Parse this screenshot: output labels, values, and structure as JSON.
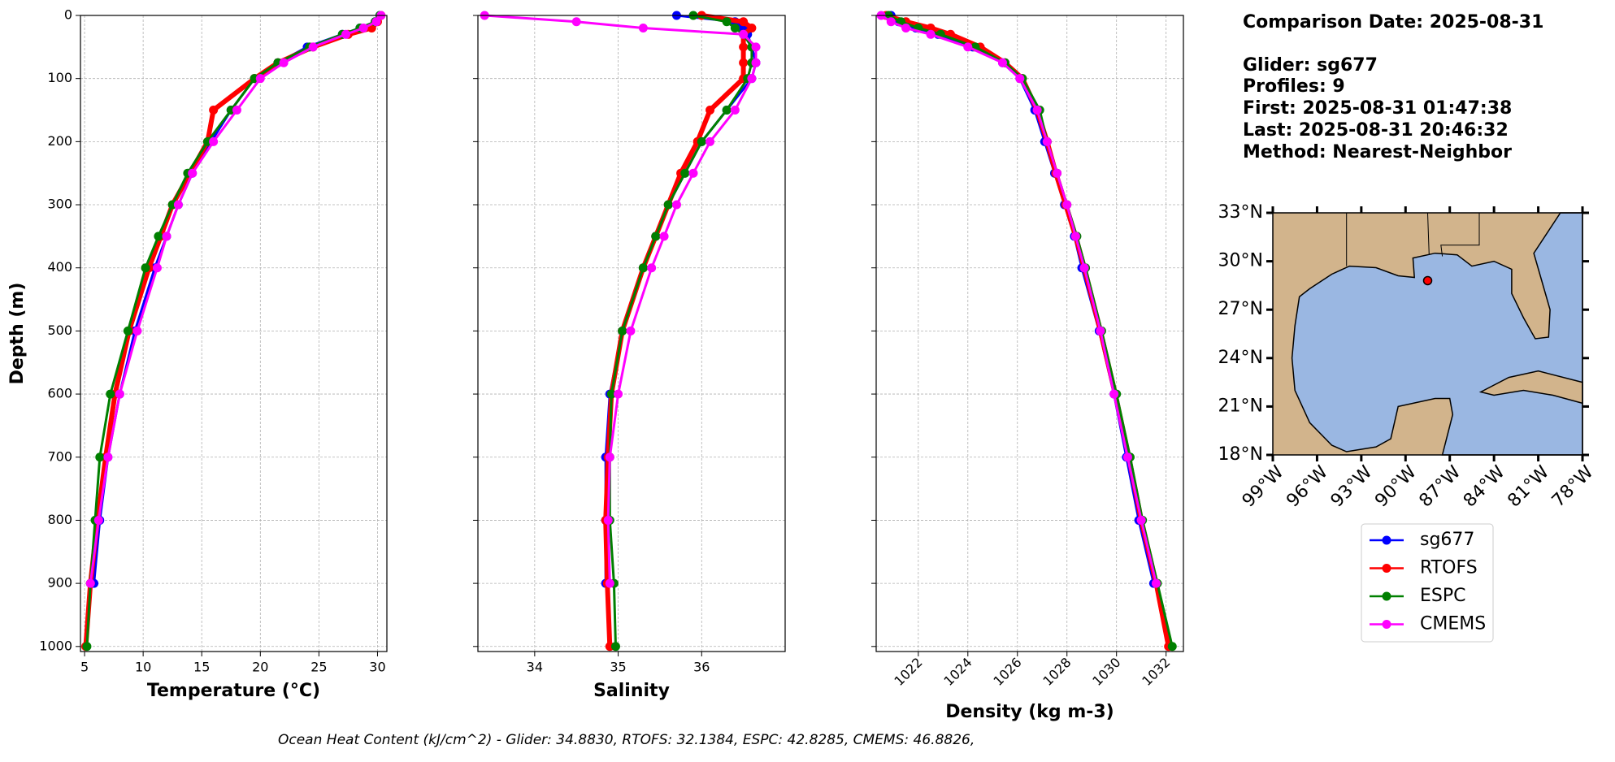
{
  "chart_data": [
    {
      "type": "line",
      "xlabel": "Temperature (°C)",
      "ylabel": "Depth (m)",
      "grid": true,
      "xlim": [
        4.65,
        30.8
      ],
      "ylim": [
        1008,
        0
      ],
      "xticks": [
        5,
        10,
        15,
        20,
        25,
        30
      ],
      "yticks": [
        0,
        100,
        200,
        300,
        400,
        500,
        600,
        700,
        800,
        900,
        1000
      ],
      "y": [
        0,
        10,
        20,
        30,
        50,
        75,
        100,
        150,
        200,
        250,
        300,
        350,
        400,
        500,
        600,
        700,
        800,
        900,
        1000
      ],
      "series": [
        {
          "name": "sg677",
          "color": "#0000ff",
          "values": [
            30.2,
            29.8,
            28.5,
            27,
            24,
            21.5,
            19.5,
            17.5,
            15.8,
            14.2,
            13,
            12,
            11,
            9.3,
            8,
            7,
            6.3,
            5.8,
            null
          ]
        },
        {
          "name": "RTOFS",
          "color": "#ff0000",
          "values": [
            30.3,
            30.0,
            29.5,
            27.5,
            24.5,
            21.5,
            19.5,
            16,
            15.5,
            14,
            12.5,
            11.5,
            10.5,
            8.8,
            7.6,
            6.8,
            6.1,
            5.5,
            5.1
          ]
        },
        {
          "name": "ESPC",
          "color": "#008000",
          "values": [
            30.2,
            29.8,
            28.5,
            27,
            24.2,
            21.5,
            19.5,
            17.5,
            15.5,
            13.8,
            12.5,
            11.3,
            10.2,
            8.7,
            7.2,
            6.3,
            5.9,
            5.5,
            5.2
          ]
        },
        {
          "name": "CMEMS",
          "color": "#ff00ff",
          "values": [
            30.3,
            29.9,
            28.8,
            27.3,
            24.5,
            22,
            20,
            18,
            16,
            14.2,
            13,
            12,
            11.2,
            9.5,
            8,
            7,
            6.2,
            5.5,
            null
          ]
        }
      ]
    },
    {
      "type": "line",
      "xlabel": "Salinity",
      "grid": true,
      "xlim": [
        33.32,
        37.0
      ],
      "ylim": [
        1008,
        0
      ],
      "xticks": [
        34,
        35,
        36
      ],
      "yticks": [
        0,
        100,
        200,
        300,
        400,
        500,
        600,
        700,
        800,
        900,
        1000
      ],
      "y": [
        0,
        10,
        20,
        30,
        50,
        75,
        100,
        150,
        200,
        250,
        300,
        350,
        400,
        500,
        600,
        700,
        800,
        900,
        1000
      ],
      "series": [
        {
          "name": "sg677",
          "color": "#0000ff",
          "values": [
            35.7,
            36.4,
            36.5,
            36.55,
            36.6,
            36.65,
            36.6,
            36.3,
            36.0,
            35.8,
            35.6,
            35.45,
            35.3,
            35.05,
            34.9,
            34.85,
            34.85,
            34.85,
            null
          ]
        },
        {
          "name": "RTOFS",
          "color": "#ff0000",
          "values": [
            36.0,
            36.5,
            36.6,
            36.5,
            36.5,
            36.5,
            36.5,
            36.1,
            35.95,
            35.75,
            35.6,
            35.45,
            35.3,
            35.05,
            34.92,
            34.88,
            34.85,
            34.87,
            34.9
          ]
        },
        {
          "name": "ESPC",
          "color": "#008000",
          "values": [
            35.9,
            36.3,
            36.4,
            36.5,
            36.6,
            36.6,
            36.55,
            36.3,
            36.0,
            35.8,
            35.6,
            35.45,
            35.3,
            35.05,
            34.92,
            34.9,
            34.9,
            34.95,
            34.97
          ]
        },
        {
          "name": "CMEMS",
          "color": "#ff00ff",
          "values": [
            33.4,
            34.5,
            35.3,
            36.5,
            36.65,
            36.65,
            36.6,
            36.4,
            36.1,
            35.9,
            35.7,
            35.55,
            35.4,
            35.15,
            35.0,
            34.9,
            34.88,
            34.9,
            null
          ]
        }
      ]
    },
    {
      "type": "line",
      "xlabel": "Density (kg m-3)",
      "grid": true,
      "xlim": [
        1020.3,
        1032.7
      ],
      "ylim": [
        1008,
        0
      ],
      "xticks": [
        1022,
        1024,
        1026,
        1028,
        1030,
        1032
      ],
      "yticks": [
        0,
        100,
        200,
        300,
        400,
        500,
        600,
        700,
        800,
        900,
        1000
      ],
      "y": [
        0,
        10,
        20,
        30,
        50,
        75,
        100,
        150,
        200,
        250,
        300,
        350,
        400,
        500,
        600,
        700,
        800,
        900,
        1000
      ],
      "series": [
        {
          "name": "sg677",
          "color": "#0000ff",
          "values": [
            1020.9,
            1021.2,
            1021.9,
            1022.8,
            1024.2,
            1025.4,
            1026.1,
            1026.7,
            1027.1,
            1027.5,
            1027.9,
            1028.3,
            1028.6,
            1029.3,
            1029.9,
            1030.4,
            1030.9,
            1031.5,
            null
          ]
        },
        {
          "name": "RTOFS",
          "color": "#ff0000",
          "values": [
            1020.7,
            1021.5,
            1022.5,
            1023.3,
            1024.5,
            1025.5,
            1026.2,
            1026.8,
            1027.2,
            1027.55,
            1027.95,
            1028.35,
            1028.7,
            1029.35,
            1029.95,
            1030.5,
            1031.0,
            1031.6,
            1032.1
          ]
        },
        {
          "name": "ESPC",
          "color": "#008000",
          "values": [
            1020.8,
            1021.3,
            1022.0,
            1022.9,
            1024.3,
            1025.5,
            1026.2,
            1026.9,
            1027.2,
            1027.6,
            1028.0,
            1028.4,
            1028.75,
            1029.4,
            1030.0,
            1030.55,
            1031.05,
            1031.65,
            1032.25
          ]
        },
        {
          "name": "CMEMS",
          "color": "#ff00ff",
          "values": [
            1020.5,
            1020.9,
            1021.5,
            1022.5,
            1024.0,
            1025.4,
            1026.1,
            1026.8,
            1027.2,
            1027.6,
            1028.0,
            1028.35,
            1028.7,
            1029.35,
            1029.9,
            1030.45,
            1031.0,
            1031.6,
            null
          ]
        }
      ]
    }
  ],
  "info": [
    "Comparison Date: 2025-08-31",
    "Glider: sg677",
    "Profiles: 9",
    "First: 2025-08-31 01:47:38",
    "Last: 2025-08-31 20:46:32",
    "Method: Nearest-Neighbor"
  ],
  "map": {
    "lat_labels": [
      "33°N",
      "30°N",
      "27°N",
      "24°N",
      "21°N",
      "18°N"
    ],
    "lon_labels": [
      "99°W",
      "96°W",
      "93°W",
      "90°W",
      "87°W",
      "84°W",
      "81°W",
      "78°W"
    ]
  },
  "footer": "Ocean Heat Content (kJ/cm^2) - Glider: 34.8830,  RTOFS: 32.1384,  ESPC: 42.8285,  CMEMS: 46.8826,"
}
